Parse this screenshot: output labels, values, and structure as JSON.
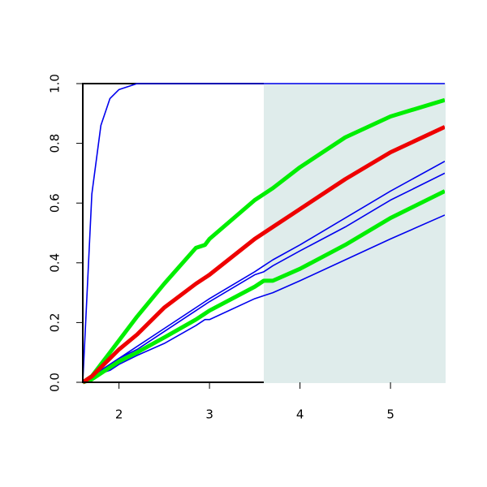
{
  "chart_data": {
    "type": "line",
    "x": [
      1.6,
      1.7,
      1.8,
      1.9,
      2.0,
      2.2,
      2.5,
      2.85,
      2.95,
      3.0,
      3.5,
      3.6,
      3.7,
      4.0,
      4.5,
      5.0,
      5.6
    ],
    "series": [
      {
        "color": "#0000ee",
        "line_width": 1.6,
        "values": [
          0,
          0.63,
          0.86,
          0.95,
          0.98,
          1,
          1,
          1,
          1,
          1,
          1,
          1,
          1,
          1,
          1,
          1,
          1
        ]
      },
      {
        "color": "#0000ee",
        "line_width": 1.6,
        "values": [
          0,
          0.02,
          0.04,
          0.06,
          0.08,
          0.12,
          0.18,
          0.25,
          0.27,
          0.28,
          0.37,
          0.39,
          0.41,
          0.46,
          0.55,
          0.64,
          0.74
        ]
      },
      {
        "color": "#0000ee",
        "line_width": 1.6,
        "values": [
          0,
          0.02,
          0.04,
          0.06,
          0.08,
          0.11,
          0.17,
          0.24,
          0.26,
          0.27,
          0.36,
          0.37,
          0.39,
          0.44,
          0.52,
          0.61,
          0.7
        ]
      },
      {
        "color": "#0000ee",
        "line_width": 1.6,
        "values": [
          0,
          0.01,
          0.03,
          0.04,
          0.06,
          0.09,
          0.13,
          0.19,
          0.21,
          0.21,
          0.28,
          0.29,
          0.3,
          0.34,
          0.41,
          0.48,
          0.56
        ]
      },
      {
        "color": "#00ee00",
        "line_width": 5,
        "values": [
          0,
          0.02,
          0.06,
          0.1,
          0.14,
          0.22,
          0.33,
          0.45,
          0.46,
          0.48,
          0.61,
          0.63,
          0.65,
          0.72,
          0.82,
          0.89,
          0.945
        ]
      },
      {
        "color": "#00ee00",
        "line_width": 5,
        "values": [
          0,
          0.01,
          0.03,
          0.05,
          0.07,
          0.1,
          0.15,
          0.21,
          0.23,
          0.24,
          0.32,
          0.34,
          0.34,
          0.38,
          0.46,
          0.55,
          0.64
        ]
      },
      {
        "color": "#ee0000",
        "line_width": 5,
        "values": [
          0,
          0.02,
          0.05,
          0.08,
          0.11,
          0.16,
          0.25,
          0.33,
          0.35,
          0.36,
          0.48,
          0.5,
          0.52,
          0.58,
          0.68,
          0.77,
          0.855
        ]
      }
    ],
    "shaded_region": {
      "x": [
        3.6,
        5.6
      ],
      "color": "#dfeceb"
    },
    "xlim": [
      1.6,
      5.6
    ],
    "xticks": [
      2,
      3,
      4,
      5
    ],
    "ylim": [
      0,
      1
    ],
    "yticks": [
      {
        "value": 0,
        "label": "0.0"
      },
      {
        "value": 0.2,
        "label": "0.2"
      },
      {
        "value": 0.4,
        "label": "0.4"
      },
      {
        "value": 0.6,
        "label": "0.6"
      },
      {
        "value": 0.8,
        "label": "0.8"
      },
      {
        "value": 1,
        "label": "1.0"
      }
    ]
  }
}
